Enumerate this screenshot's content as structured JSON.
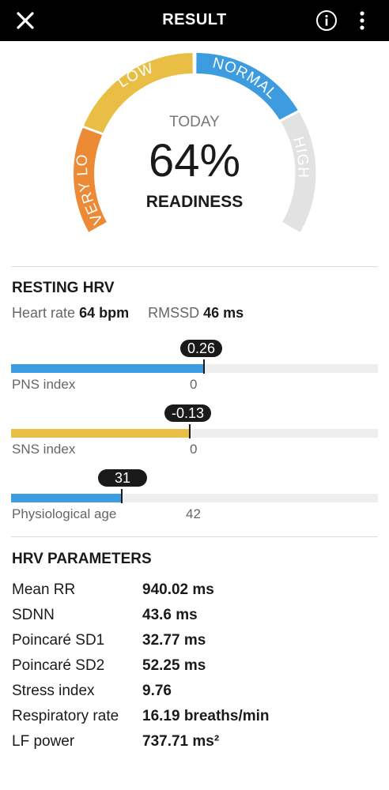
{
  "header": {
    "title": "RESULT",
    "close_icon": "close-icon",
    "info_icon": "info-icon",
    "more_icon": "more-vert-icon"
  },
  "gauge": {
    "segments": [
      "VERY LOW",
      "LOW",
      "NORMAL",
      "HIGH"
    ],
    "today_label": "TODAY",
    "value": "64%",
    "label": "READINESS",
    "colors": {
      "very_low": "#ec8a35",
      "low": "#e8be45",
      "normal": "#3d9be0",
      "high": "#e2e2e2"
    }
  },
  "resting_hrv": {
    "title": "RESTING HRV",
    "heart_rate_label": "Heart rate",
    "heart_rate_value": "64 bpm",
    "rmssd_label": "RMSSD",
    "rmssd_value": "46 ms",
    "indices": [
      {
        "name": "PNS index",
        "value": "0.26",
        "reference": "0",
        "color": "#3d9be0"
      },
      {
        "name": "SNS index",
        "value": "-0.13",
        "reference": "0",
        "color": "#e8be45"
      },
      {
        "name": "Physiological age",
        "value": "31",
        "reference": "42",
        "color": "#3d9be0"
      }
    ]
  },
  "hrv_parameters": {
    "title": "HRV PARAMETERS",
    "rows": [
      {
        "name": "Mean RR",
        "value": "940.02 ms"
      },
      {
        "name": "SDNN",
        "value": "43.6 ms"
      },
      {
        "name": "Poincaré SD1",
        "value": "32.77 ms"
      },
      {
        "name": "Poincaré SD2",
        "value": "52.25 ms"
      },
      {
        "name": "Stress index",
        "value": "9.76"
      },
      {
        "name": "Respiratory rate",
        "value": "16.19 breaths/min"
      },
      {
        "name": "LF power",
        "value": "737.71 ms²"
      }
    ]
  }
}
